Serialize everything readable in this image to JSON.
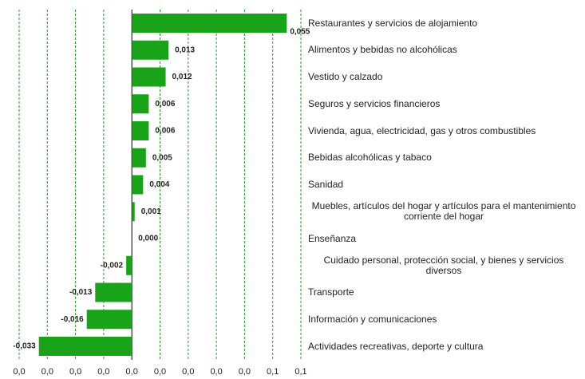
{
  "chart_data": {
    "type": "barh",
    "categories": [
      "Restaurantes y servicios de alojamiento",
      "Alimentos y bebidas no alcohólicas",
      "Vestido y calzado",
      "Seguros y servicios financieros",
      "Vivienda, agua, electricidad, gas y otros combustibles",
      "Bebidas alcohólicas y tabaco",
      "Sanidad",
      "Muebles, artículos del hogar y artículos para el mantenimiento corriente del hogar",
      "Enseñanza",
      "Cuidado personal, protección social, y bienes y servicios diversos",
      "Transporte",
      "Información y comunicaciones",
      "Actividades recreativas, deporte y cultura"
    ],
    "values": [
      0.055,
      0.013,
      0.012,
      0.006,
      0.006,
      0.005,
      0.004,
      0.001,
      0.0,
      -0.002,
      -0.013,
      -0.016,
      -0.033
    ],
    "value_labels": [
      "0,055",
      "0,013",
      "0,012",
      "0,006",
      "0,006",
      "0,005",
      "0,004",
      "0,001",
      "0,000",
      "-0,002",
      "-0,013",
      "-0,016",
      "-0,033"
    ],
    "color": "#19a319",
    "xlim": [
      -0.04,
      0.06
    ],
    "xticks": [
      {
        "value": -0.04,
        "label": "0,0"
      },
      {
        "value": -0.03,
        "label": "0,0"
      },
      {
        "value": -0.02,
        "label": "0,0"
      },
      {
        "value": -0.01,
        "label": "0,0"
      },
      {
        "value": 0,
        "label": "0,0"
      },
      {
        "value": 0.01,
        "label": "0,0"
      },
      {
        "value": 0.02,
        "label": "0,0"
      },
      {
        "value": 0.03,
        "label": "0,0"
      },
      {
        "value": 0.04,
        "label": "0,0"
      },
      {
        "value": 0.05,
        "label": "0,1"
      },
      {
        "value": 0.06,
        "label": "0,1"
      }
    ],
    "grid": true
  }
}
